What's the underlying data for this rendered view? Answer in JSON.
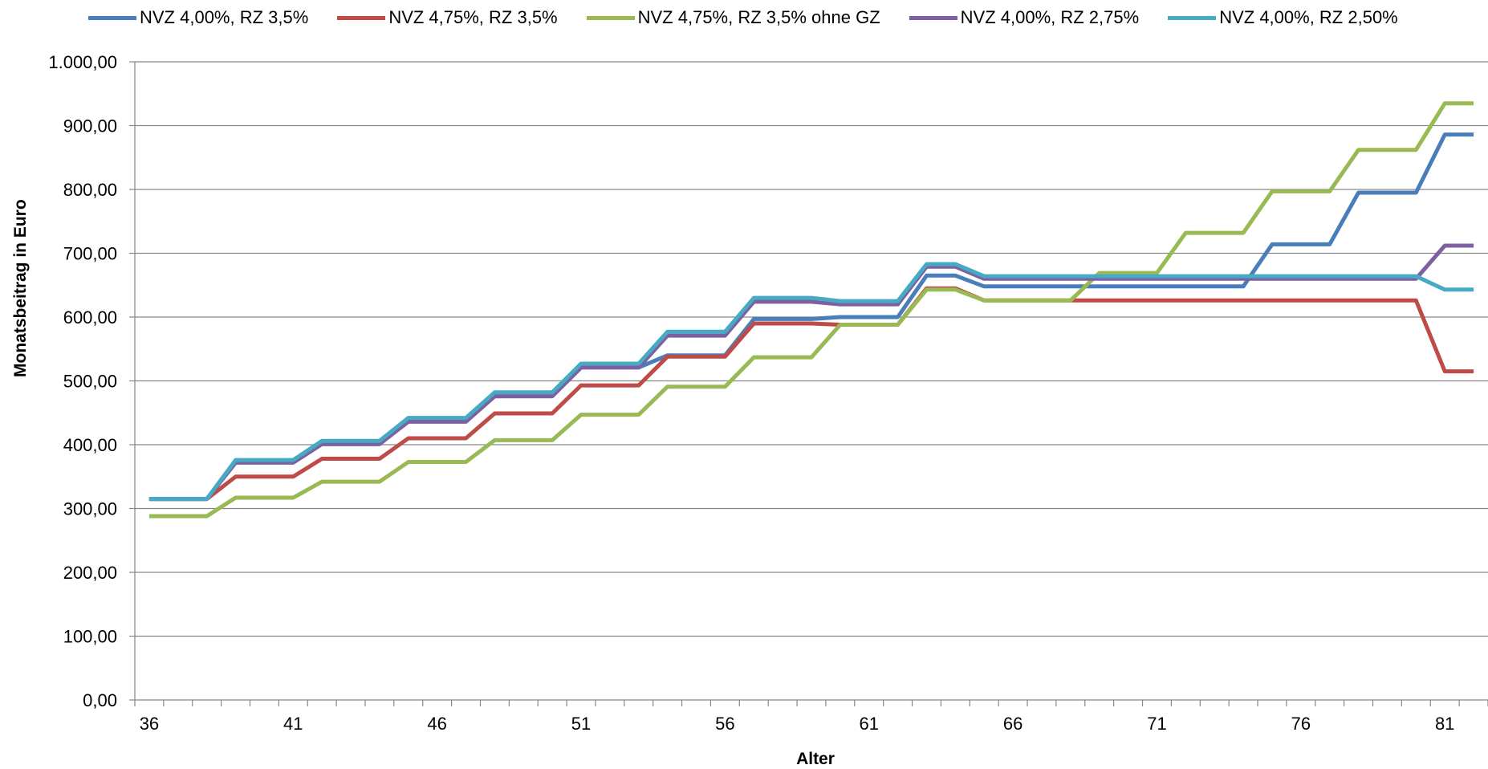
{
  "chart_data": {
    "type": "line",
    "xlabel": "Alter",
    "ylabel": "Monatsbeitrag in Euro",
    "ylim": [
      0,
      1000
    ],
    "yticks": [
      "0,00",
      "100,00",
      "200,00",
      "300,00",
      "400,00",
      "500,00",
      "600,00",
      "700,00",
      "800,00",
      "900,00",
      "1.000,00"
    ],
    "xtick_labels": [
      "36",
      "41",
      "46",
      "51",
      "56",
      "61",
      "66",
      "71",
      "76",
      "81"
    ],
    "x": [
      36,
      37,
      38,
      39,
      40,
      41,
      42,
      43,
      44,
      45,
      46,
      47,
      48,
      49,
      50,
      51,
      52,
      53,
      54,
      55,
      56,
      57,
      58,
      59,
      60,
      61,
      62,
      63,
      64,
      65,
      66,
      67,
      68,
      69,
      70,
      71,
      72,
      73,
      74,
      75,
      76,
      77,
      78,
      79,
      80,
      81,
      82
    ],
    "grid": true,
    "legend_position": "top",
    "series": [
      {
        "name": "NVZ 4,00%, RZ 3,5%",
        "color": "#4a7ebb",
        "values": [
          315,
          315,
          315,
          372,
          372,
          372,
          401,
          401,
          401,
          437,
          437,
          437,
          476,
          476,
          476,
          521,
          521,
          521,
          540,
          540,
          540,
          597,
          597,
          597,
          600,
          600,
          600,
          665,
          665,
          648,
          648,
          648,
          648,
          648,
          648,
          648,
          648,
          648,
          648,
          714,
          714,
          714,
          795,
          795,
          795,
          886,
          886
        ]
      },
      {
        "name": "NVZ 4,75%, RZ 3,5%",
        "color": "#be4b48",
        "values": [
          315,
          315,
          315,
          350,
          350,
          350,
          378,
          378,
          378,
          410,
          410,
          410,
          449,
          449,
          449,
          493,
          493,
          493,
          538,
          538,
          538,
          590,
          590,
          590,
          588,
          588,
          588,
          645,
          645,
          626,
          626,
          626,
          626,
          626,
          626,
          626,
          626,
          626,
          626,
          626,
          626,
          626,
          626,
          626,
          626,
          515,
          515
        ]
      },
      {
        "name": "NVZ 4,75%, RZ 3,5% ohne GZ",
        "color": "#98b954",
        "values": [
          288,
          288,
          288,
          317,
          317,
          317,
          342,
          342,
          342,
          373,
          373,
          373,
          407,
          407,
          407,
          447,
          447,
          447,
          491,
          491,
          491,
          537,
          537,
          537,
          588,
          588,
          588,
          643,
          643,
          626,
          626,
          626,
          626,
          669,
          669,
          669,
          732,
          732,
          732,
          797,
          797,
          797,
          862,
          862,
          862,
          935,
          935
        ]
      },
      {
        "name": "NVZ 4,00%, RZ 2,75%",
        "color": "#7d60a0",
        "values": [
          315,
          315,
          315,
          372,
          372,
          372,
          401,
          401,
          401,
          436,
          436,
          436,
          476,
          476,
          476,
          521,
          521,
          521,
          571,
          571,
          571,
          624,
          624,
          624,
          620,
          620,
          620,
          679,
          679,
          660,
          660,
          660,
          660,
          660,
          660,
          660,
          660,
          660,
          660,
          660,
          660,
          660,
          660,
          660,
          660,
          712,
          712
        ]
      },
      {
        "name": "NVZ 4,00%, RZ 2,50%",
        "color": "#46aac5",
        "values": [
          315,
          315,
          315,
          376,
          376,
          376,
          406,
          406,
          406,
          442,
          442,
          442,
          482,
          482,
          482,
          527,
          527,
          527,
          577,
          577,
          577,
          630,
          630,
          630,
          625,
          625,
          625,
          683,
          683,
          664,
          664,
          664,
          664,
          664,
          664,
          664,
          664,
          664,
          664,
          664,
          664,
          664,
          664,
          664,
          664,
          643,
          643
        ]
      }
    ]
  }
}
